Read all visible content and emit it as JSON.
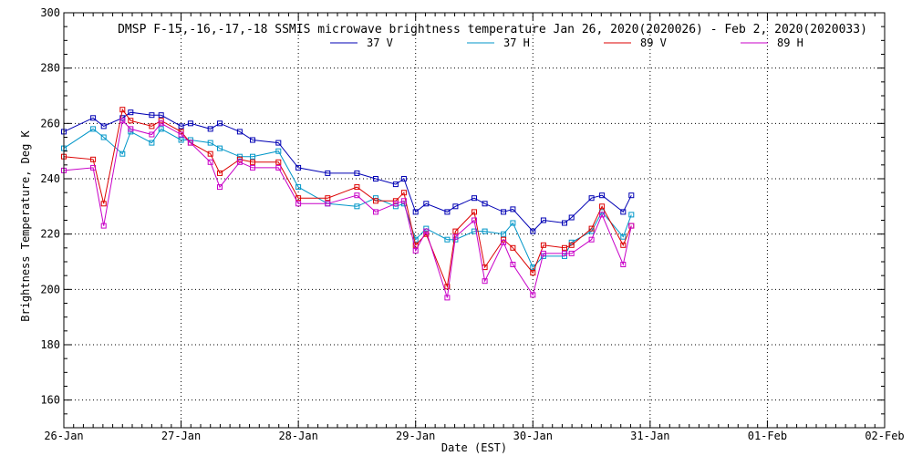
{
  "chart_data": {
    "type": "line",
    "title": "DMSP F-15,-16,-17,-18 SSMIS microwave brightness temperature Jan 26, 2020(2020026) - Feb  2, 2020(2020033)",
    "xlabel": "Date (EST)",
    "ylabel": "Brightness Temperature, Deg K",
    "xlim": [
      0,
      7
    ],
    "ylim": [
      150,
      300
    ],
    "x_tick_labels": [
      "26-Jan",
      "27-Jan",
      "28-Jan",
      "29-Jan",
      "30-Jan",
      "31-Jan",
      "01-Feb",
      "02-Feb"
    ],
    "y_ticks": [
      160,
      180,
      200,
      220,
      240,
      260,
      280,
      300
    ],
    "grid": true,
    "legend_position": "top-center",
    "series": [
      {
        "name": "37 V",
        "color": "#0000b4",
        "x": [
          0.0,
          0.25,
          0.34,
          0.5,
          0.57,
          0.75,
          0.83,
          1.0,
          1.08,
          1.25,
          1.33,
          1.5,
          1.61,
          1.83,
          2.0,
          2.25,
          2.5,
          2.66,
          2.83,
          2.9,
          3.0,
          3.09,
          3.27,
          3.34,
          3.5,
          3.59,
          3.75,
          3.83,
          4.0,
          4.09,
          4.27,
          4.33,
          4.5,
          4.59,
          4.77,
          4.84
        ],
        "values": [
          257,
          262,
          259,
          262,
          264,
          263,
          263,
          259,
          260,
          258,
          260,
          257,
          254,
          253,
          244,
          242,
          242,
          240,
          238,
          240,
          228,
          231,
          228,
          230,
          233,
          231,
          228,
          229,
          221,
          225,
          224,
          226,
          233,
          234,
          228,
          234
        ]
      },
      {
        "name": "37 H",
        "color": "#0096c8",
        "x": [
          0.0,
          0.25,
          0.34,
          0.5,
          0.57,
          0.75,
          0.83,
          1.0,
          1.08,
          1.25,
          1.33,
          1.5,
          1.61,
          1.83,
          2.0,
          2.25,
          2.5,
          2.66,
          2.83,
          2.9,
          3.0,
          3.09,
          3.27,
          3.34,
          3.5,
          3.59,
          3.75,
          3.83,
          4.0,
          4.09,
          4.27,
          4.33,
          4.5,
          4.59,
          4.77,
          4.84
        ],
        "values": [
          251,
          258,
          255,
          249,
          257,
          253,
          258,
          254,
          254,
          253,
          251,
          248,
          248,
          250,
          237,
          231,
          230,
          233,
          230,
          231,
          218,
          222,
          218,
          218,
          221,
          221,
          220,
          224,
          208,
          212,
          212,
          217,
          221,
          228,
          219,
          227
        ]
      },
      {
        "name": "89 V",
        "color": "#dc0000",
        "x": [
          0.0,
          0.25,
          0.34,
          0.5,
          0.57,
          0.75,
          0.83,
          1.0,
          1.08,
          1.25,
          1.33,
          1.5,
          1.61,
          1.83,
          2.0,
          2.25,
          2.5,
          2.66,
          2.83,
          2.9,
          3.0,
          3.09,
          3.27,
          3.34,
          3.5,
          3.59,
          3.75,
          3.83,
          4.0,
          4.09,
          4.27,
          4.33,
          4.5,
          4.59,
          4.77,
          4.84
        ],
        "values": [
          248,
          247,
          231,
          265,
          261,
          259,
          261,
          257,
          253,
          249,
          242,
          247,
          246,
          246,
          233,
          233,
          237,
          232,
          232,
          235,
          216,
          220,
          201,
          221,
          228,
          208,
          218,
          215,
          206,
          216,
          215,
          216,
          222,
          230,
          216,
          223
        ]
      },
      {
        "name": "89 H",
        "color": "#c800c8",
        "x": [
          0.0,
          0.25,
          0.34,
          0.5,
          0.57,
          0.75,
          0.83,
          1.0,
          1.08,
          1.25,
          1.33,
          1.5,
          1.61,
          1.83,
          2.0,
          2.25,
          2.5,
          2.66,
          2.83,
          2.9,
          3.0,
          3.09,
          3.27,
          3.34,
          3.5,
          3.59,
          3.75,
          3.83,
          4.0,
          4.09,
          4.27,
          4.33,
          4.5,
          4.59,
          4.77,
          4.84
        ],
        "values": [
          243,
          244,
          223,
          261,
          258,
          256,
          260,
          256,
          253,
          246,
          237,
          246,
          244,
          244,
          231,
          231,
          234,
          228,
          231,
          232,
          214,
          221,
          197,
          219,
          225,
          203,
          217,
          209,
          198,
          213,
          213,
          213,
          218,
          227,
          209,
          223
        ]
      }
    ]
  }
}
